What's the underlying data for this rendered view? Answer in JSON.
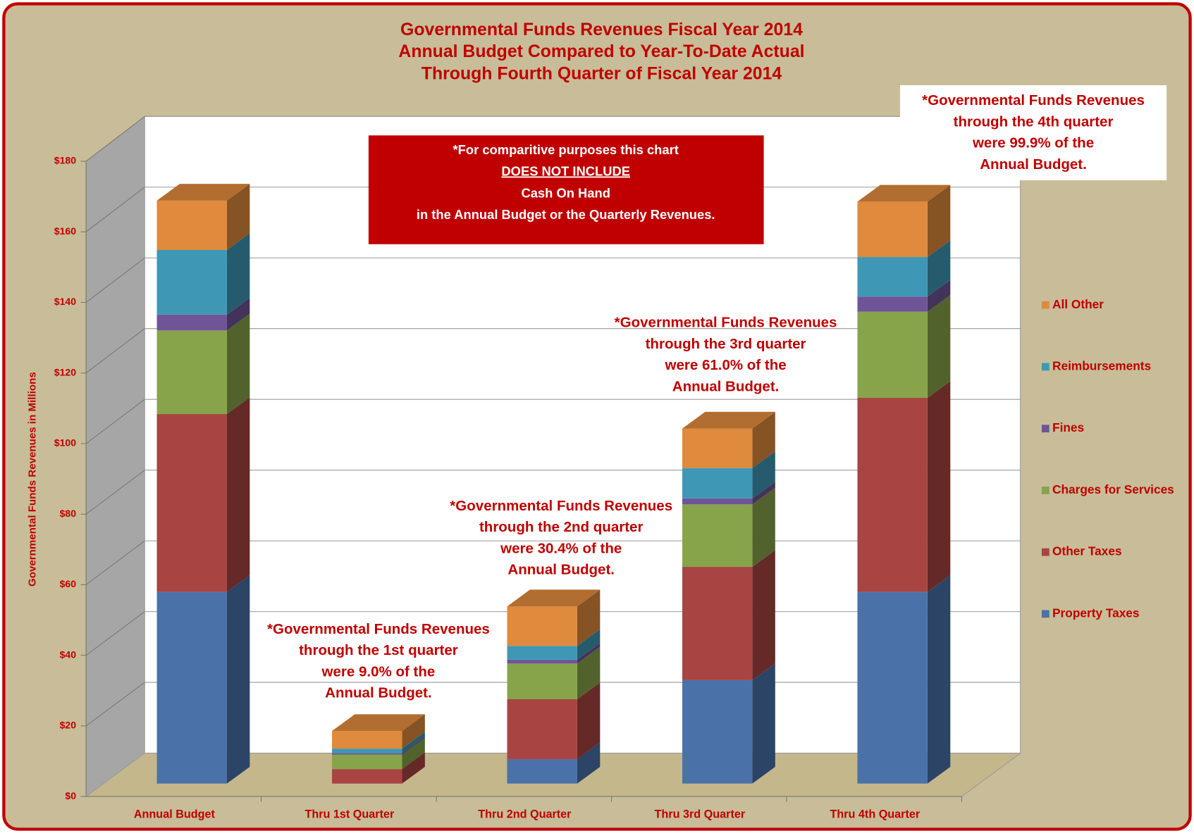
{
  "chart_data": {
    "type": "bar3d_stacked",
    "title": [
      "Governmental Funds Revenues Fiscal Year 2014",
      "Annual Budget Compared to Year-To-Date Actual",
      "Through Fourth Quarter of Fiscal Year 2014"
    ],
    "y_label": "Governmental Funds Revenues in Millions",
    "categories": [
      "Annual Budget",
      "Thru 1st Quarter",
      "Thru 2nd Quarter",
      "Thru 3rd Quarter",
      "Thru 4th Quarter"
    ],
    "series": [
      {
        "name": "Property Taxes",
        "color": "#4a72a8",
        "values": [
          54.3,
          0,
          6.9,
          29.3,
          54.3
        ]
      },
      {
        "name": "Other Taxes",
        "color": "#a84442",
        "values": [
          50.4,
          4.1,
          17.0,
          32.1,
          55.0
        ]
      },
      {
        "name": "Charges for Services",
        "color": "#88a44a",
        "values": [
          23.7,
          4.1,
          10.1,
          17.7,
          24.4
        ]
      },
      {
        "name": "Fines",
        "color": "#6f5597",
        "values": [
          4.5,
          0.4,
          1.1,
          1.7,
          4.3
        ]
      },
      {
        "name": "Reimbursements",
        "color": "#3e98b5",
        "values": [
          18.3,
          1.3,
          3.9,
          8.6,
          11.2
        ]
      },
      {
        "name": "All Other",
        "color": "#df8a3c",
        "values": [
          14.0,
          5.0,
          11.2,
          11.2,
          15.7
        ]
      }
    ],
    "ylim": [
      0,
      180
    ],
    "yticks": [
      {
        "value": 0,
        "label": "$0"
      },
      {
        "value": 20,
        "label": "$20"
      },
      {
        "value": 40,
        "label": "$40"
      },
      {
        "value": 60,
        "label": "$60"
      },
      {
        "value": 80,
        "label": "$80"
      },
      {
        "value": 100,
        "label": "$100"
      },
      {
        "value": 120,
        "label": "$120"
      },
      {
        "value": 140,
        "label": "$140"
      },
      {
        "value": 160,
        "label": "$160"
      },
      {
        "value": 180,
        "label": "$180"
      }
    ],
    "grid": true,
    "legend": "right",
    "note": [
      "*For comparitive purposes this chart",
      "DOES NOT INCLUDE",
      "Cash On Hand",
      "in the Annual Budget or the Quarterly Revenues."
    ],
    "annotations": [
      [
        "*Governmental Funds Revenues",
        "through the 1st quarter",
        "were 9.0% of the",
        "Annual Budget."
      ],
      [
        "*Governmental Funds Revenues",
        "through the 2nd quarter",
        "were 30.4% of the",
        "Annual Budget."
      ],
      [
        "*Governmental Funds Revenues",
        "through the 3rd quarter",
        "were 61.0% of the",
        "Annual Budget."
      ],
      [
        "*Governmental Funds Revenues",
        "through the 4th quarter",
        "were 99.9% of the",
        "Annual Budget."
      ]
    ]
  }
}
